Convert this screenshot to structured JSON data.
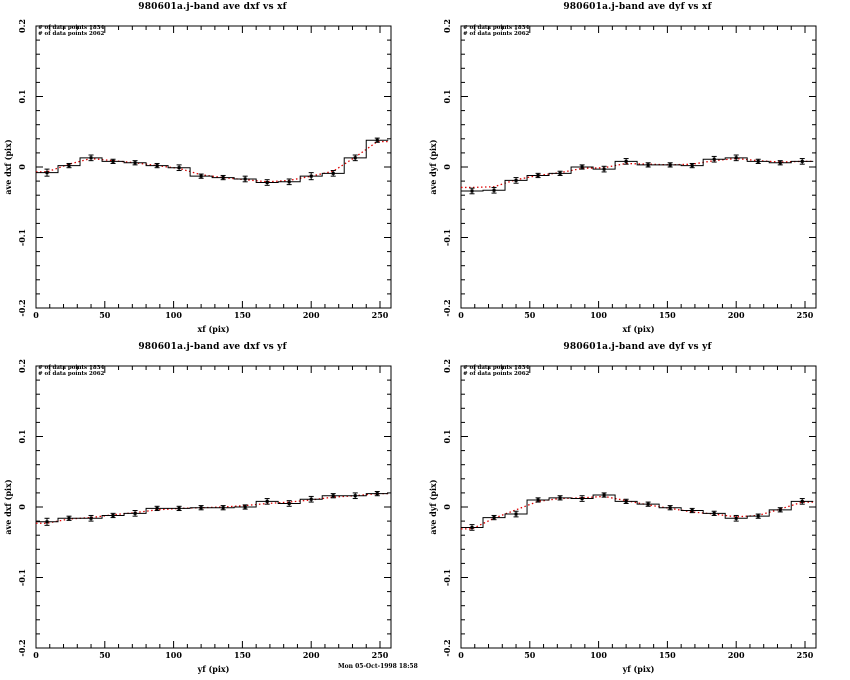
{
  "page": {
    "background": "#ffffff"
  },
  "footer": {
    "timestamp": "Mon 05-Oct-1998 18:58"
  },
  "colors": {
    "axis": "#000000",
    "step_line": "#000000",
    "point": "#000000",
    "overlay_line": "#dd0000",
    "text": "#000000"
  },
  "axes": {
    "xlim": [
      0,
      258
    ],
    "ylim": [
      -0.2,
      0.2
    ],
    "xticks": [
      0,
      50,
      100,
      150,
      200,
      250
    ],
    "xtick_labels": [
      "0",
      "50",
      "100",
      "150",
      "200",
      "250"
    ],
    "yticks": [
      -0.2,
      -0.1,
      0,
      0.1,
      0.2
    ],
    "ytick_labels": [
      "-0.2",
      "-0.1",
      "0",
      "0.1",
      "0.2"
    ],
    "x_minor_step": 10,
    "y_minor_step": 0.02,
    "grid": false,
    "legend": "none"
  },
  "chart_data": [
    {
      "type": "bar",
      "style": "step-histogram with points, error bars and red dotted overlay",
      "title": "980601a.j-band ave dxf vs xf",
      "xlabel": "xf (pix)",
      "ylabel": "ave dxf (pix)",
      "annotations": [
        "# of data points 1834",
        "# of data points 2062"
      ],
      "bin_edges": [
        0,
        16,
        32,
        48,
        64,
        80,
        96,
        112,
        128,
        144,
        160,
        176,
        192,
        208,
        224,
        240,
        256
      ],
      "values": [
        -0.008,
        0.002,
        0.013,
        0.008,
        0.006,
        0.002,
        -0.001,
        -0.013,
        -0.015,
        -0.017,
        -0.022,
        -0.021,
        -0.013,
        -0.009,
        0.013,
        0.038
      ],
      "errors": [
        0.005,
        0.003,
        0.004,
        0.003,
        0.003,
        0.003,
        0.004,
        0.003,
        0.003,
        0.004,
        0.004,
        0.004,
        0.005,
        0.004,
        0.004,
        0.003
      ],
      "overlay_values": [
        -0.007,
        0.004,
        0.012,
        0.009,
        0.006,
        0.002,
        -0.002,
        -0.011,
        -0.015,
        -0.018,
        -0.021,
        -0.019,
        -0.013,
        -0.006,
        0.014,
        0.036
      ]
    },
    {
      "type": "bar",
      "style": "step-histogram with points, error bars and red dotted overlay",
      "title": "980601a.j-band ave dyf vs xf",
      "xlabel": "xf (pix)",
      "ylabel": "ave dyf (pix)",
      "annotations": [
        "# of data points 1834",
        "# of data points 2062"
      ],
      "bin_edges": [
        0,
        16,
        32,
        48,
        64,
        80,
        96,
        112,
        128,
        144,
        160,
        176,
        192,
        208,
        224,
        240,
        256
      ],
      "values": [
        -0.034,
        -0.033,
        -0.019,
        -0.012,
        -0.009,
        0.0,
        -0.003,
        0.008,
        0.003,
        0.003,
        0.002,
        0.011,
        0.013,
        0.008,
        0.006,
        0.008
      ],
      "errors": [
        0.004,
        0.004,
        0.004,
        0.003,
        0.003,
        0.003,
        0.004,
        0.004,
        0.003,
        0.003,
        0.003,
        0.004,
        0.004,
        0.003,
        0.003,
        0.004
      ],
      "overlay_values": [
        -0.029,
        -0.028,
        -0.018,
        -0.012,
        -0.008,
        -0.002,
        -0.001,
        0.005,
        0.004,
        0.003,
        0.004,
        0.009,
        0.012,
        0.009,
        0.007,
        0.008
      ]
    },
    {
      "type": "bar",
      "style": "step-histogram with points, error bars and red dotted overlay",
      "title": "980601a.j-band ave dxf vs yf",
      "xlabel": "yf (pix)",
      "ylabel": "ave dxf (pix)",
      "annotations": [
        "# of data points 1834",
        "# of data points 2062"
      ],
      "bin_edges": [
        0,
        16,
        32,
        48,
        64,
        80,
        96,
        112,
        128,
        144,
        160,
        176,
        192,
        208,
        224,
        240,
        256
      ],
      "values": [
        -0.021,
        -0.016,
        -0.016,
        -0.012,
        -0.009,
        -0.002,
        -0.002,
        -0.001,
        -0.001,
        0.0,
        0.008,
        0.005,
        0.011,
        0.016,
        0.016,
        0.019
      ],
      "errors": [
        0.005,
        0.003,
        0.004,
        0.003,
        0.004,
        0.003,
        0.003,
        0.003,
        0.003,
        0.003,
        0.004,
        0.004,
        0.004,
        0.003,
        0.004,
        0.003
      ],
      "overlay_values": [
        -0.023,
        -0.017,
        -0.015,
        -0.011,
        -0.008,
        -0.004,
        -0.002,
        -0.001,
        0.0,
        0.002,
        0.005,
        0.007,
        0.01,
        0.014,
        0.016,
        0.019
      ]
    },
    {
      "type": "bar",
      "style": "step-histogram with points, error bars and red dotted overlay",
      "title": "980601a.j-band ave dyf vs yf",
      "xlabel": "yf (pix)",
      "ylabel": "ave dyf (pix)",
      "annotations": [
        "# of data points 1834",
        "# of data points 2062"
      ],
      "bin_edges": [
        0,
        16,
        32,
        48,
        64,
        80,
        96,
        112,
        128,
        144,
        160,
        176,
        192,
        208,
        224,
        240,
        256
      ],
      "values": [
        -0.029,
        -0.015,
        -0.01,
        0.01,
        0.013,
        0.012,
        0.017,
        0.008,
        0.004,
        -0.001,
        -0.005,
        -0.009,
        -0.016,
        -0.013,
        -0.004,
        0.008
      ],
      "errors": [
        0.004,
        0.003,
        0.004,
        0.003,
        0.003,
        0.004,
        0.003,
        0.003,
        0.003,
        0.003,
        0.003,
        0.003,
        0.004,
        0.003,
        0.003,
        0.004
      ],
      "overlay_values": [
        -0.031,
        -0.016,
        -0.004,
        0.008,
        0.012,
        0.013,
        0.015,
        0.009,
        0.003,
        -0.002,
        -0.007,
        -0.01,
        -0.014,
        -0.012,
        -0.003,
        0.007
      ]
    }
  ]
}
